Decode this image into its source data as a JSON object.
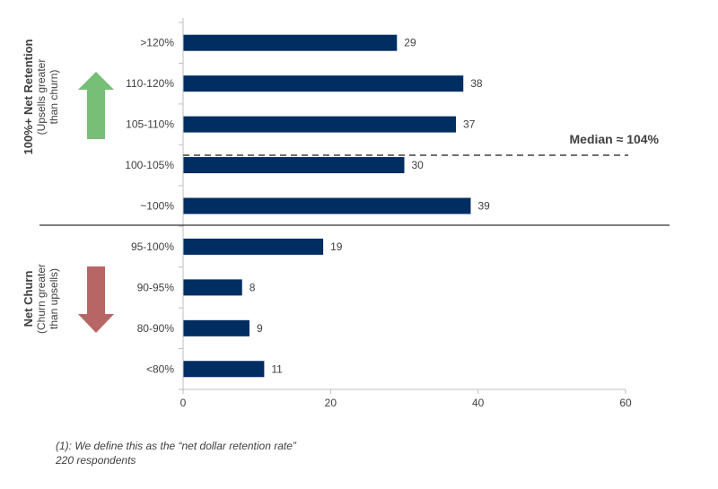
{
  "chart_data": {
    "type": "bar",
    "orientation": "horizontal",
    "categories": [
      ">120%",
      "110-120%",
      "105-110%",
      "100-105%",
      "~100%",
      "95-100%",
      "90-95%",
      "80-90%",
      "<80%"
    ],
    "values": [
      29,
      38,
      37,
      30,
      39,
      19,
      8,
      9,
      11
    ],
    "xlim": [
      0,
      60
    ],
    "xticks": [
      "0",
      "20",
      "40",
      "60"
    ],
    "grid": false,
    "bar_color": "#002D62",
    "median": {
      "label": "Median ≈ 104%"
    },
    "groups": [
      {
        "title": "100%+ Net Retention",
        "subtitle_line1": "(Upsells greater",
        "subtitle_line2": "than churn)",
        "arrow": "up",
        "arrow_color": "#77BE76"
      },
      {
        "title": "Net Churn",
        "subtitle_line1": "(Churn greater",
        "subtitle_line2": "than upsells)",
        "arrow": "down",
        "arrow_color": "#B86565"
      }
    ]
  },
  "footnote": {
    "line1": "(1): We define this as the “net dollar retention rate”",
    "line2": "220 respondents"
  }
}
